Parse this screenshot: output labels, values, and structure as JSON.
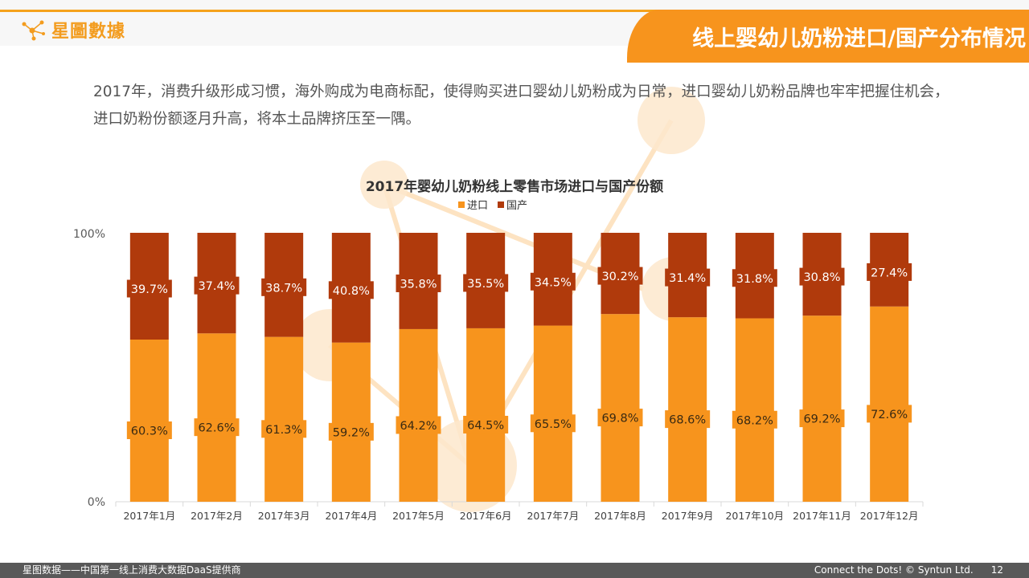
{
  "brand": {
    "logo_text": "星圖數據"
  },
  "header": {
    "title": "线上婴幼儿奶粉进口/国产分布情况"
  },
  "intro_text": "2017年，消费升级形成习惯，海外购成为电商标配，使得购买进口婴幼儿奶粉成为日常，进口婴幼儿奶粉品牌也牢牢把握住机会，进口奶粉份额逐月升高，将本土品牌挤压至一隅。",
  "colors": {
    "import": "#f7941d",
    "domestic": "#b03a0c",
    "accent": "#f5a21c"
  },
  "chart_data": {
    "type": "bar",
    "stacked": true,
    "title": "2017年婴幼儿奶粉线上零售市场进口与国产份额",
    "categories": [
      "2017年1月",
      "2017年2月",
      "2017年3月",
      "2017年4月",
      "2017年5月",
      "2017年6月",
      "2017年7月",
      "2017年8月",
      "2017年9月",
      "2017年10月",
      "2017年11月",
      "2017年12月"
    ],
    "series": [
      {
        "name": "进口",
        "values": [
          60.3,
          62.6,
          61.3,
          59.2,
          64.2,
          64.5,
          65.5,
          69.8,
          68.6,
          68.2,
          69.2,
          72.6
        ],
        "labels": [
          "60.3%",
          "62.6%",
          "61.3%",
          "59.2%",
          "64.2%",
          "64.5%",
          "65.5%",
          "69.8%",
          "68.6%",
          "68.2%",
          "69.2%",
          "72.6%"
        ]
      },
      {
        "name": "国产",
        "values": [
          39.7,
          37.4,
          38.7,
          40.8,
          35.8,
          35.5,
          34.5,
          30.2,
          31.4,
          31.8,
          30.8,
          27.4
        ],
        "labels": [
          "39.7%",
          "37.4%",
          "38.7%",
          "40.8%",
          "35.8%",
          "35.5%",
          "34.5%",
          "30.2%",
          "31.4%",
          "31.8%",
          "30.8%",
          "27.4%"
        ]
      }
    ],
    "ylim": [
      0,
      100
    ],
    "y_tick_labels": [
      "0%",
      "100%"
    ],
    "legend_position": "top-center"
  },
  "footer": {
    "left": "星图数据——中国第一线上消费大数据DaaS提供商",
    "slogan": "Connect the Dots! © Syntun Ltd.",
    "page_number": "12"
  }
}
